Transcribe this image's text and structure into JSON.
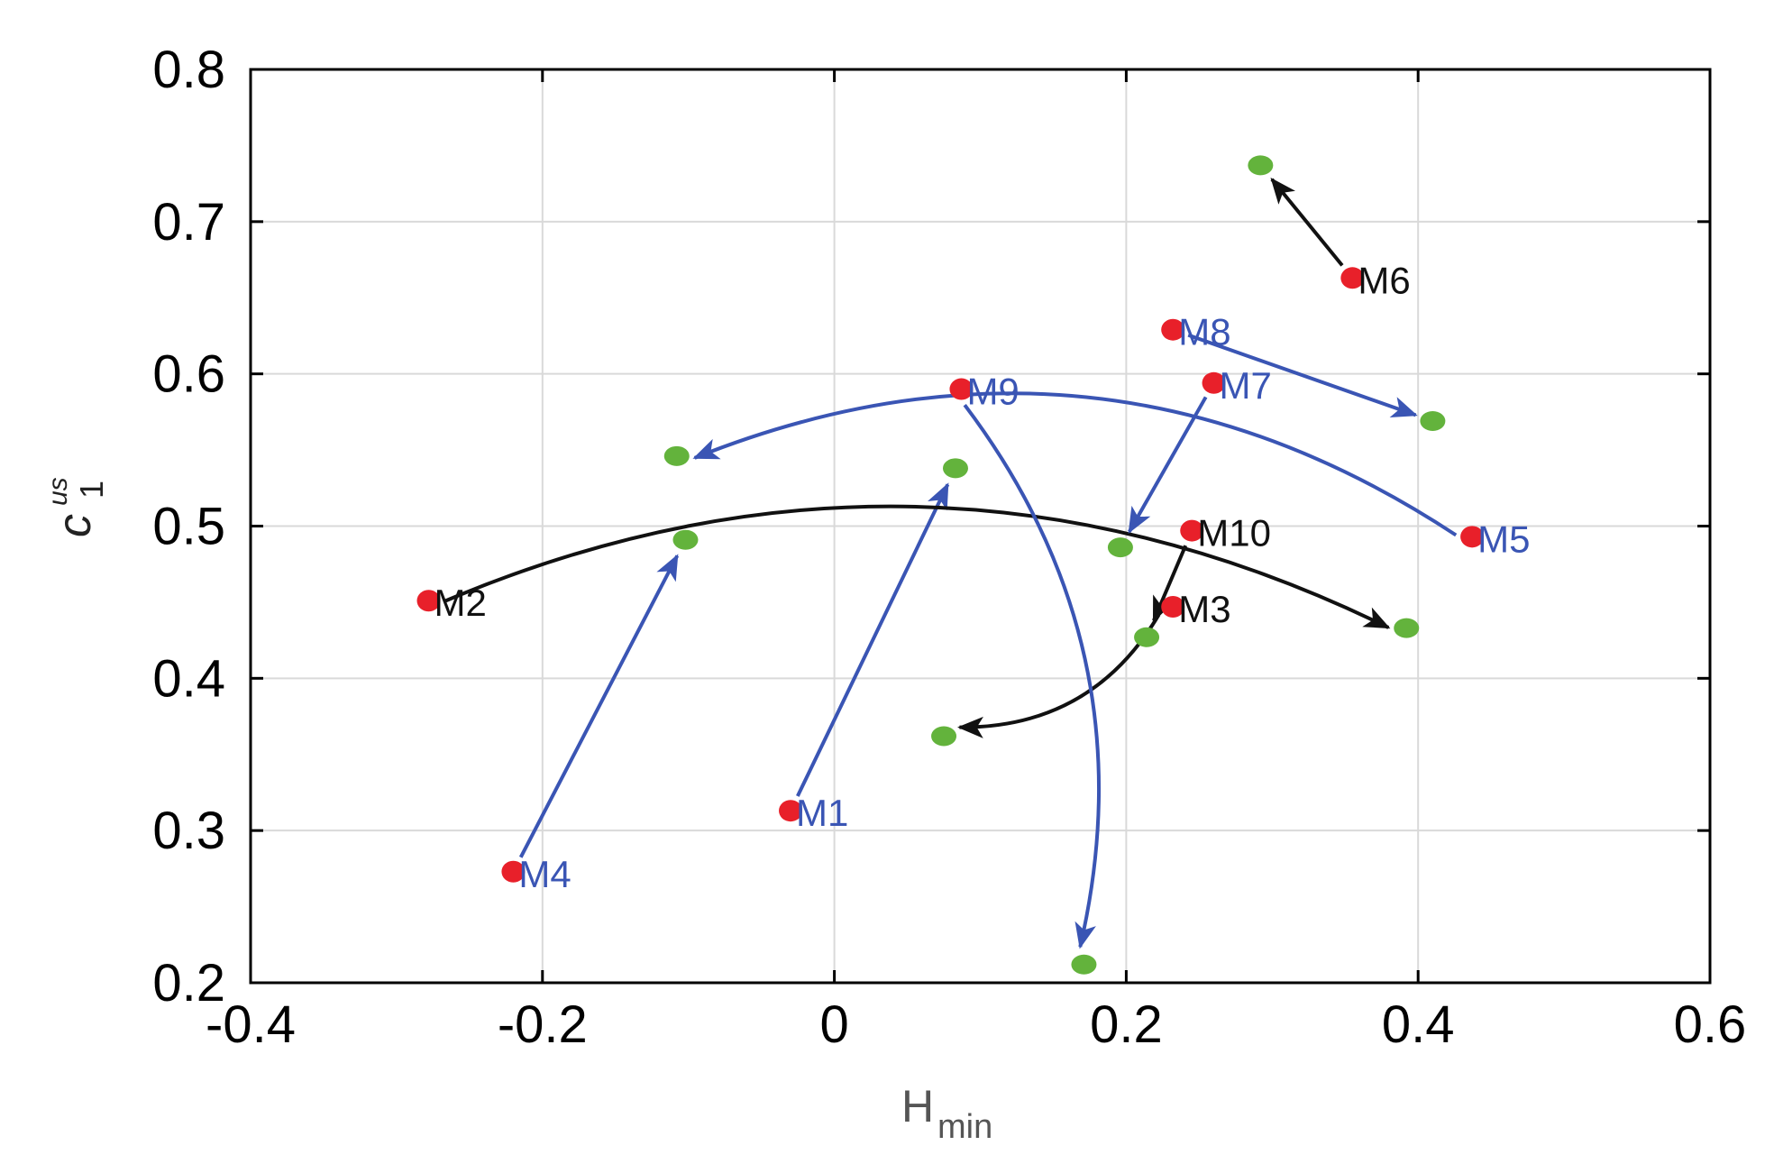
{
  "chart_data": {
    "type": "scatter",
    "title": "",
    "xlabel": "H",
    "xlabel_sub": "min",
    "ylabel": "c",
    "ylabel_sub": "1",
    "ylabel_sup": "us",
    "xlim": [
      -0.4,
      0.6
    ],
    "ylim": [
      0.2,
      0.8
    ],
    "xticks": [
      -0.4,
      -0.2,
      0,
      0.2,
      0.4,
      0.6
    ],
    "xtick_labels": [
      "-0.4",
      "-0.2",
      "0",
      "0.2",
      "0.4",
      "0.6"
    ],
    "yticks": [
      0.2,
      0.3,
      0.4,
      0.5,
      0.6,
      0.7,
      0.8
    ],
    "ytick_labels": [
      "0.2",
      "0.3",
      "0.4",
      "0.5",
      "0.6",
      "0.7",
      "0.8"
    ],
    "grid": true,
    "legend": "none",
    "colors": {
      "start": "#e8202a",
      "end": "#63b33c",
      "blue": "#3a55b4",
      "black": "#111111",
      "grid": "#d9d9d9",
      "axis": "#000000"
    },
    "points": [
      {
        "label": "M1",
        "x": -0.03,
        "y": 0.313,
        "end_x": 0.083,
        "end_y": 0.538,
        "color": "blue"
      },
      {
        "label": "M2",
        "x": -0.278,
        "y": 0.451,
        "end_x": 0.392,
        "end_y": 0.433,
        "color": "black"
      },
      {
        "label": "M3",
        "x": 0.232,
        "y": 0.447,
        "end_x": 0.075,
        "end_y": 0.362,
        "color": "black"
      },
      {
        "label": "M4",
        "x": -0.22,
        "y": 0.273,
        "end_x": -0.102,
        "end_y": 0.491,
        "color": "blue"
      },
      {
        "label": "M5",
        "x": 0.437,
        "y": 0.493,
        "end_x": -0.108,
        "end_y": 0.546,
        "color": "blue"
      },
      {
        "label": "M6",
        "x": 0.355,
        "y": 0.663,
        "end_x": 0.292,
        "end_y": 0.737,
        "color": "black"
      },
      {
        "label": "M7",
        "x": 0.26,
        "y": 0.594,
        "end_x": 0.196,
        "end_y": 0.486,
        "color": "blue"
      },
      {
        "label": "M8",
        "x": 0.232,
        "y": 0.629,
        "end_x": 0.41,
        "end_y": 0.569,
        "color": "blue"
      },
      {
        "label": "M9",
        "x": 0.087,
        "y": 0.59,
        "end_x": 0.171,
        "end_y": 0.212,
        "color": "blue"
      },
      {
        "label": "M10",
        "x": 0.245,
        "y": 0.497,
        "end_x": 0.214,
        "end_y": 0.427,
        "color": "black"
      }
    ],
    "unlinked_ends": []
  }
}
